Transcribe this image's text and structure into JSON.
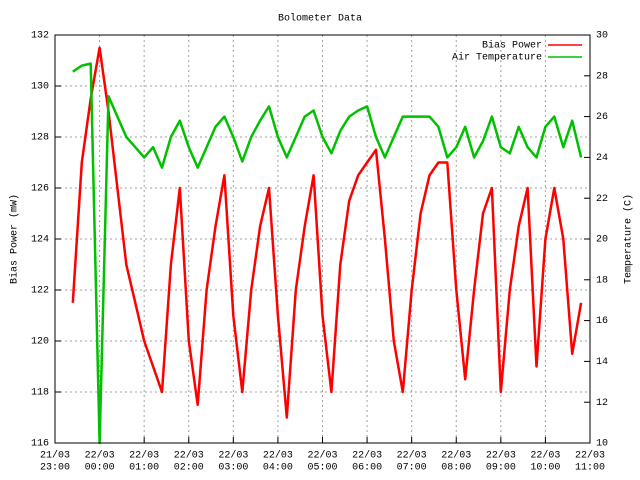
{
  "chart_data": {
    "type": "line",
    "title": "Bolometer Data",
    "ylabel": "Bias Power (mW)",
    "y2label": "Temperature (C)",
    "x": [
      0.4,
      0.6,
      0.8,
      1,
      1.2,
      1.4,
      1.6,
      1.8,
      2,
      2.2,
      2.4,
      2.6,
      2.8,
      3,
      3.2,
      3.4,
      3.6,
      3.8,
      4,
      4.2,
      4.4,
      4.6,
      4.8,
      5,
      5.2,
      5.4,
      5.6,
      5.8,
      6,
      6.2,
      6.4,
      6.6,
      6.8,
      7,
      7.2,
      7.4,
      7.6,
      7.8,
      8,
      8.2,
      8.4,
      8.6,
      8.8,
      9,
      9.2,
      9.4,
      9.6,
      9.8,
      10,
      10.2,
      10.4,
      10.6,
      10.8,
      11,
      11.2,
      11.4,
      11.6,
      11.8
    ],
    "series": [
      {
        "name": "Bias Power",
        "color": "#ff0000",
        "axis": "y",
        "values": [
          121.5,
          127,
          129.5,
          131.5,
          129,
          126,
          123,
          121.5,
          120,
          119,
          118,
          123,
          126,
          120,
          117.5,
          122,
          124.5,
          126.5,
          121,
          118,
          122,
          124.5,
          126,
          121,
          117,
          122,
          124.5,
          126.5,
          121,
          118,
          123,
          125.5,
          126.5,
          127,
          127.5,
          124,
          120,
          118,
          122,
          125,
          126.5,
          127,
          127,
          122,
          118.5,
          122,
          125,
          126,
          118,
          122,
          124.5,
          126,
          119,
          124,
          126,
          124,
          119.5,
          121.5
        ]
      },
      {
        "name": "Air Temperature",
        "color": "#00c000",
        "axis": "y2",
        "values": [
          28.2,
          28.5,
          28.6,
          10,
          27,
          26,
          25,
          24.5,
          24,
          24.5,
          23.5,
          25,
          25.8,
          24.5,
          23.5,
          24.5,
          25.5,
          26,
          25,
          23.8,
          25,
          25.8,
          26.5,
          25,
          24,
          25,
          26,
          26.3,
          25,
          24.2,
          25.3,
          26,
          26.3,
          26.5,
          25,
          24,
          25,
          26,
          26,
          26,
          26,
          25.5,
          24,
          24.5,
          25.5,
          24,
          24.8,
          26,
          24.5,
          24.2,
          25.5,
          24.5,
          24,
          25.5,
          26,
          24.5,
          25.8,
          24
        ]
      }
    ],
    "xlim": [
      0,
      12
    ],
    "xticks": [
      {
        "value": 0,
        "label": [
          "21/03",
          "23:00"
        ]
      },
      {
        "value": 1,
        "label": [
          "22/03",
          "00:00"
        ]
      },
      {
        "value": 2,
        "label": [
          "22/03",
          "01:00"
        ]
      },
      {
        "value": 3,
        "label": [
          "22/03",
          "02:00"
        ]
      },
      {
        "value": 4,
        "label": [
          "22/03",
          "03:00"
        ]
      },
      {
        "value": 5,
        "label": [
          "22/03",
          "04:00"
        ]
      },
      {
        "value": 6,
        "label": [
          "22/03",
          "05:00"
        ]
      },
      {
        "value": 7,
        "label": [
          "22/03",
          "06:00"
        ]
      },
      {
        "value": 8,
        "label": [
          "22/03",
          "07:00"
        ]
      },
      {
        "value": 9,
        "label": [
          "22/03",
          "08:00"
        ]
      },
      {
        "value": 10,
        "label": [
          "22/03",
          "09:00"
        ]
      },
      {
        "value": 11,
        "label": [
          "22/03",
          "10:00"
        ]
      },
      {
        "value": 12,
        "label": [
          "22/03",
          "11:00"
        ]
      }
    ],
    "ylim": [
      116,
      132
    ],
    "yticks": [
      116,
      118,
      120,
      122,
      124,
      126,
      128,
      130,
      132
    ],
    "y2lim": [
      10,
      30
    ],
    "y2ticks": [
      10,
      12,
      14,
      16,
      18,
      20,
      22,
      24,
      26,
      28,
      30
    ],
    "grid": true,
    "legend": "top-right"
  }
}
